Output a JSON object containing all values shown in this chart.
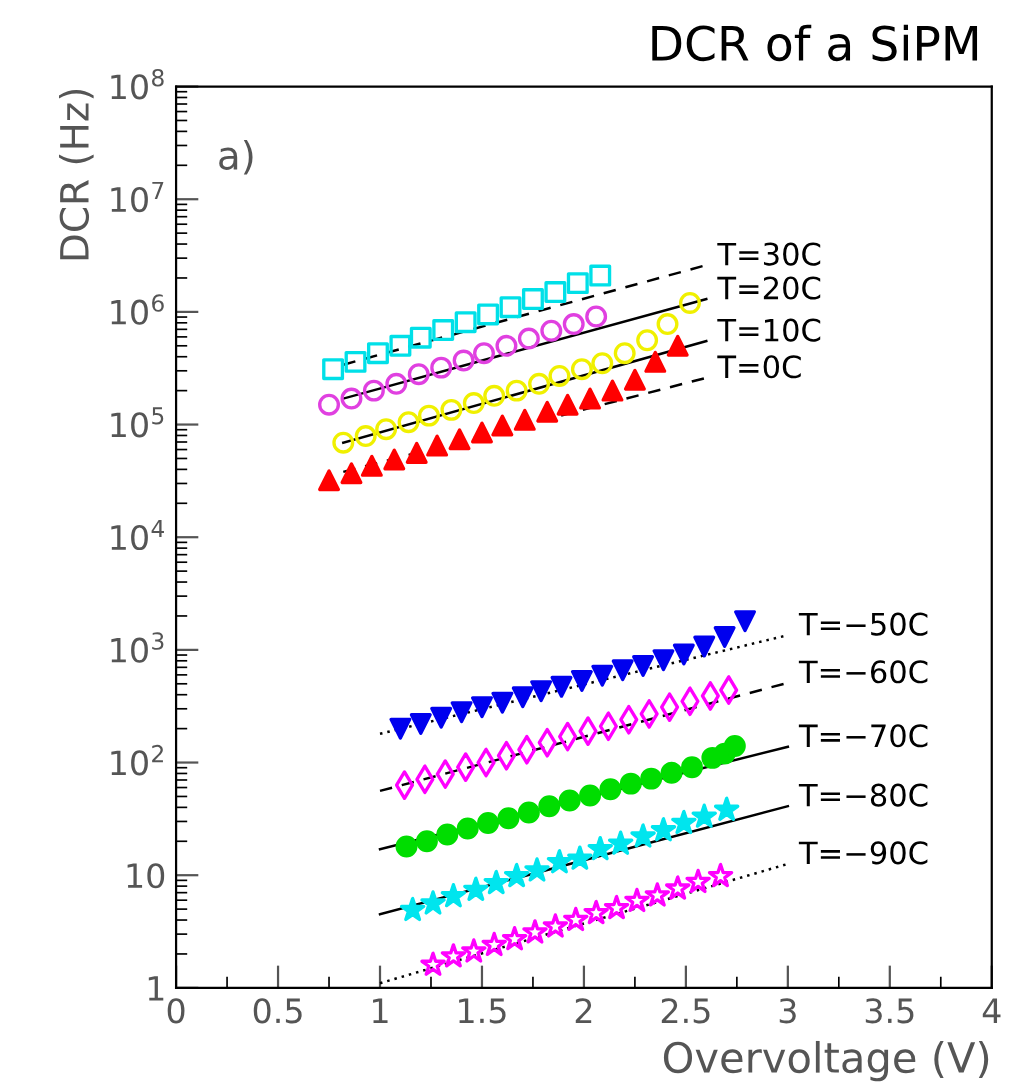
{
  "chart_data": {
    "type": "scatter",
    "title": "DCR of a SiPM",
    "xlabel": "Overvoltage (V)",
    "ylabel": "DCR (Hz)",
    "annotations": [
      "a)"
    ],
    "log": "y",
    "grid": false,
    "legend": false,
    "xlim": [
      0,
      4
    ],
    "xticks": [
      0,
      0.5,
      1,
      1.5,
      2,
      2.5,
      3,
      3.5,
      4
    ],
    "ylim": [
      1,
      100000000
    ],
    "yticks": [
      1,
      10,
      {
        "value": 100,
        "label": "10$^{2}$"
      },
      {
        "value": 1000,
        "label": "10$^{3}$"
      },
      {
        "value": 10000,
        "label": "10$^{4}$"
      },
      {
        "value": 100000,
        "label": "10$^{5}$"
      },
      {
        "value": 1000000,
        "label": "10$^{6}$"
      },
      {
        "value": 10000000,
        "label": "10$^{7}$"
      },
      {
        "value": 100000000,
        "label": "10$^{8}$"
      }
    ],
    "series": [
      {
        "marker": "square-open",
        "color": "#00e0e8",
        "x": [
          0.77,
          0.88,
          0.99,
          1.1,
          1.2,
          1.31,
          1.42,
          1.53,
          1.64,
          1.75,
          1.86,
          1.97,
          2.08
        ],
        "values": [
          310000,
          360000,
          430000,
          500000,
          590000,
          690000,
          810000,
          950000,
          1100000,
          1300000,
          1500000,
          1800000,
          2100000
        ]
      },
      {
        "marker": "circle-open",
        "color": "#e040e0",
        "x": [
          0.75,
          0.86,
          0.97,
          1.08,
          1.19,
          1.3,
          1.41,
          1.51,
          1.62,
          1.73,
          1.84,
          1.95,
          2.06
        ],
        "values": [
          150000,
          170000,
          200000,
          230000,
          280000,
          320000,
          370000,
          430000,
          500000,
          580000,
          680000,
          780000,
          910000
        ]
      },
      {
        "marker": "circle-open",
        "color": "#f0f000",
        "x": [
          0.82,
          0.93,
          1.03,
          1.14,
          1.24,
          1.35,
          1.46,
          1.56,
          1.67,
          1.78,
          1.88,
          1.99,
          2.09,
          2.2,
          2.31,
          2.41,
          2.52
        ],
        "values": [
          69000,
          79000,
          91000,
          105000,
          120000,
          135000,
          155000,
          180000,
          200000,
          230000,
          270000,
          310000,
          350000,
          430000,
          560000,
          780000,
          1200000
        ]
      },
      {
        "marker": "triangle",
        "color": "#ff0000",
        "x": [
          0.75,
          0.86,
          0.96,
          1.07,
          1.18,
          1.28,
          1.39,
          1.5,
          1.6,
          1.71,
          1.82,
          1.92,
          2.03,
          2.14,
          2.25,
          2.35,
          2.46
        ],
        "values": [
          32000,
          37000,
          43000,
          49000,
          56000,
          65000,
          74000,
          85000,
          98000,
          110000,
          130000,
          150000,
          170000,
          200000,
          250000,
          360000,
          500000
        ]
      },
      {
        "marker": "triangle-down",
        "color": "#0000ee",
        "x": [
          1.1,
          1.2,
          1.3,
          1.4,
          1.5,
          1.6,
          1.7,
          1.79,
          1.89,
          1.99,
          2.09,
          2.19,
          2.29,
          2.39,
          2.49,
          2.59,
          2.69,
          2.79
        ],
        "values": [
          200,
          220,
          250,
          280,
          310,
          340,
          380,
          430,
          470,
          530,
          590,
          660,
          720,
          810,
          910,
          1070,
          1300,
          1800
        ]
      },
      {
        "marker": "diamond-open",
        "color": "#ff00ff",
        "x": [
          1.12,
          1.22,
          1.32,
          1.42,
          1.52,
          1.62,
          1.72,
          1.82,
          1.92,
          2.02,
          2.12,
          2.22,
          2.32,
          2.42,
          2.52,
          2.62,
          2.71
        ],
        "values": [
          63,
          71,
          79,
          91,
          100,
          115,
          130,
          150,
          170,
          190,
          210,
          240,
          270,
          310,
          350,
          390,
          440
        ]
      },
      {
        "marker": "circle",
        "color": "#00dd00",
        "x": [
          1.13,
          1.23,
          1.33,
          1.43,
          1.53,
          1.63,
          1.73,
          1.83,
          1.93,
          2.03,
          2.13,
          2.23,
          2.33,
          2.43,
          2.53,
          2.63,
          2.69,
          2.74
        ],
        "values": [
          18,
          20,
          23,
          26,
          29,
          32,
          36,
          41,
          46,
          51,
          58,
          65,
          72,
          81,
          91,
          110,
          120,
          140
        ]
      },
      {
        "marker": "star",
        "color": "#00e5ee",
        "x": [
          1.16,
          1.26,
          1.36,
          1.47,
          1.57,
          1.67,
          1.77,
          1.88,
          1.98,
          2.08,
          2.18,
          2.29,
          2.39,
          2.49,
          2.59,
          2.7
        ],
        "values": [
          4.9,
          5.6,
          6.5,
          7.4,
          8.5,
          9.8,
          11,
          13,
          14,
          17,
          19,
          22,
          25,
          29,
          33,
          38
        ]
      },
      {
        "marker": "star-open",
        "color": "#ff00ff",
        "x": [
          1.26,
          1.36,
          1.46,
          1.56,
          1.66,
          1.76,
          1.86,
          1.96,
          2.06,
          2.16,
          2.26,
          2.36,
          2.46,
          2.56,
          2.67
        ],
        "values": [
          1.6,
          1.9,
          2.1,
          2.4,
          2.7,
          3.1,
          3.5,
          4.0,
          4.6,
          5.1,
          5.9,
          6.6,
          7.6,
          8.7,
          9.8
        ]
      },
      {
        "type": "line",
        "name": "T=30C",
        "line_style": "dashed",
        "color": "#000000",
        "x": [
          0.82,
          2.6
        ],
        "values": [
          340000,
          2600000
        ]
      },
      {
        "type": "line",
        "name": "T=20C",
        "line_style": "solid",
        "color": "#000000",
        "x": [
          0.82,
          2.6
        ],
        "values": [
          170000,
          1300000
        ]
      },
      {
        "type": "line",
        "name": "T=10C",
        "line_style": "solid",
        "color": "#000000",
        "x": [
          0.82,
          2.6
        ],
        "values": [
          69000,
          550000
        ]
      },
      {
        "type": "line",
        "name": "T=0C",
        "line_style": "dashed",
        "color": "#000000",
        "x": [
          0.82,
          2.6
        ],
        "values": [
          38000,
          260000
        ]
      },
      {
        "type": "line",
        "name": "T=−50C",
        "line_style": "dotted",
        "color": "#000000",
        "x": [
          1.0,
          3.0
        ],
        "values": [
          180,
          1350
        ]
      },
      {
        "type": "line",
        "name": "T=−60C",
        "line_style": "dashed",
        "color": "#000000",
        "x": [
          1.0,
          3.0
        ],
        "values": [
          56,
          510
        ]
      },
      {
        "type": "line",
        "name": "T=−70C",
        "line_style": "solid",
        "color": "#000000",
        "x": [
          1.0,
          3.0
        ],
        "values": [
          17,
          138
        ]
      },
      {
        "type": "line",
        "name": "T=−80C",
        "line_style": "solid",
        "color": "#000000",
        "x": [
          1.0,
          3.0
        ],
        "values": [
          4.5,
          41
        ]
      },
      {
        "type": "line",
        "name": "T=−90C",
        "line_style": "dotted",
        "color": "#000000",
        "x": [
          1.0,
          3.0
        ],
        "values": [
          1.1,
          12.6
        ]
      }
    ]
  }
}
